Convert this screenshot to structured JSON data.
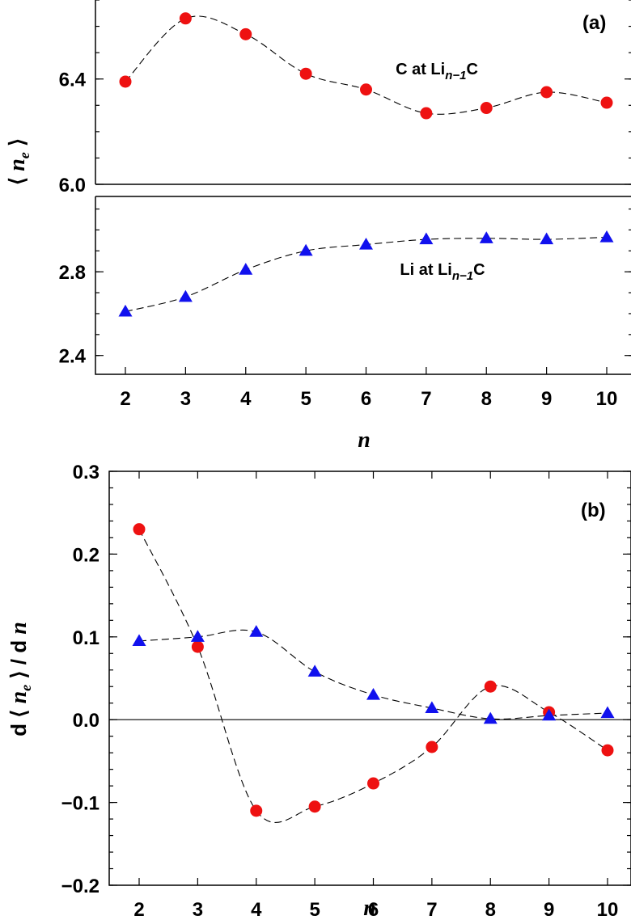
{
  "chart_data": [
    {
      "type": "scatter",
      "panel_label": "(a)",
      "xlabel": "n",
      "ylabel_prefix": "⟨ ",
      "ylabel_var": "n",
      "ylabel_sub": "e",
      "ylabel_suffix": " ⟩",
      "broken_y_axis": true,
      "x_ticks": [
        "2",
        "3",
        "4",
        "5",
        "6",
        "7",
        "8",
        "9",
        "10"
      ],
      "upper": {
        "ylim": [
          6.0,
          6.7
        ],
        "y_ticks": [
          "6.0",
          "6.4"
        ],
        "y_tick_values": [
          6.0,
          6.4
        ],
        "series": {
          "annotation": {
            "pre": "C at Li",
            "sub": "n−1",
            "post": "C"
          },
          "color": "#ee1111",
          "marker": "circle",
          "x": [
            2,
            3,
            4,
            5,
            6,
            7,
            8,
            9,
            10
          ],
          "y": [
            6.39,
            6.63,
            6.57,
            6.42,
            6.36,
            6.27,
            6.29,
            6.35,
            6.31
          ]
        }
      },
      "lower": {
        "ylim": [
          2.31,
          3.16
        ],
        "y_ticks": [
          "2.4",
          "2.8"
        ],
        "y_tick_values": [
          2.4,
          2.8
        ],
        "series": {
          "annotation": {
            "pre": "Li at Li",
            "sub": "n−1",
            "post": "C"
          },
          "color": "#1111ee",
          "marker": "triangle",
          "x": [
            2,
            3,
            4,
            5,
            6,
            7,
            8,
            9,
            10
          ],
          "y": [
            2.61,
            2.68,
            2.81,
            2.9,
            2.93,
            2.955,
            2.96,
            2.955,
            2.965
          ]
        }
      }
    },
    {
      "type": "scatter",
      "panel_label": "(b)",
      "xlabel": "n",
      "ylabel_prefix": "d ⟨ ",
      "ylabel_var": "n",
      "ylabel_sub": "e",
      "ylabel_suffix": " ⟩ / d ",
      "ylabel_tail": "n",
      "ylim": [
        -0.2,
        0.3
      ],
      "y_ticks": [
        "−0.2",
        "−0.1",
        "0.0",
        "0.1",
        "0.2",
        "0.3"
      ],
      "y_tick_values": [
        -0.2,
        -0.1,
        0.0,
        0.1,
        0.2,
        0.3
      ],
      "x_ticks": [
        "2",
        "3",
        "4",
        "5",
        "6",
        "7",
        "8",
        "9",
        "10"
      ],
      "zero_line": true,
      "series": [
        {
          "color": "#ee1111",
          "marker": "circle",
          "x": [
            2,
            3,
            4,
            5,
            6,
            7,
            8,
            9,
            10
          ],
          "y": [
            0.23,
            0.088,
            -0.11,
            -0.105,
            -0.077,
            -0.033,
            0.04,
            0.009,
            -0.037
          ]
        },
        {
          "color": "#1111ee",
          "marker": "triangle",
          "x": [
            2,
            3,
            4,
            5,
            6,
            7,
            8,
            9,
            10
          ],
          "y": [
            0.095,
            0.1,
            0.106,
            0.058,
            0.03,
            0.014,
            0.001,
            0.005,
            0.008
          ]
        }
      ]
    }
  ]
}
